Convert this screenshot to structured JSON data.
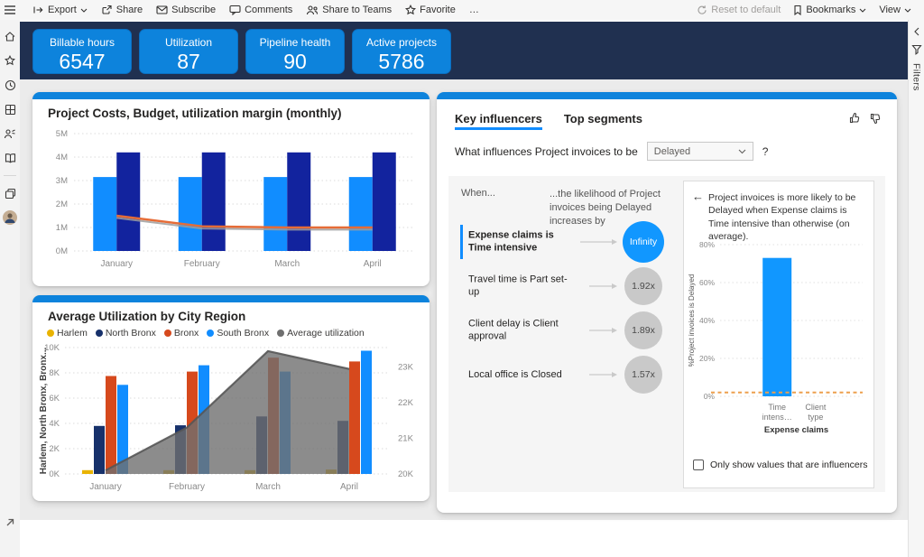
{
  "toolbar": {
    "export": "Export",
    "share": "Share",
    "subscribe": "Subscribe",
    "comments": "Comments",
    "share_to_teams": "Share to Teams",
    "favorite": "Favorite",
    "more": "…",
    "reset": "Reset to default",
    "bookmarks": "Bookmarks",
    "view": "View"
  },
  "filters_panel": {
    "label": "Filters"
  },
  "kpis": [
    {
      "label": "Billable hours",
      "value": "6547"
    },
    {
      "label": "Utilization",
      "value": "87"
    },
    {
      "label": "Pipeline health",
      "value": "90"
    },
    {
      "label": "Active projects",
      "value": "5786"
    }
  ],
  "key_influencers": {
    "tabs": [
      {
        "label": "Key influencers"
      },
      {
        "label": "Top segments"
      }
    ],
    "question_prefix": "What influences Project invoices to be",
    "dropdown_value": "Delayed",
    "question_mark": "?",
    "when_label": "When...",
    "likelihood_header": "...the likelihood of Project invoices being Delayed increases by",
    "influencers": [
      {
        "factor": "Expense claims is Time intensive",
        "multiplier": "Infinity"
      },
      {
        "factor": "Travel time is Part set-up",
        "multiplier": "1.92x"
      },
      {
        "factor": "Client delay is Client approval",
        "multiplier": "1.89x"
      },
      {
        "factor": "Local office is Closed",
        "multiplier": "1.57x"
      }
    ],
    "detail": {
      "back_arrow": "←",
      "text": "Project invoices is more likely to be Delayed when Expense claims is Time intensive than otherwise (on average).",
      "checkbox_label": "Only show values that are influencers",
      "checkbox_checked": false
    }
  },
  "colors": {
    "accent_blue": "#118DFF",
    "dark_blue": "#12239E",
    "orange": "#E66C37",
    "banner_navy": "#203050",
    "kpi_card_blue": "#0D83DC",
    "influencer_blue": "#1197FF"
  },
  "chart_data": [
    {
      "type": "bar",
      "title": "Project Costs, Budget, utilization margin (monthly)",
      "categories": [
        "January",
        "February",
        "March",
        "April"
      ],
      "series": [
        {
          "name": "Project Costs",
          "color": "#118DFF",
          "values": [
            3.15,
            3.15,
            3.15,
            3.15
          ]
        },
        {
          "name": "Budget",
          "color": "#12239E",
          "values": [
            4.2,
            4.2,
            4.2,
            4.2
          ]
        }
      ],
      "line_series": {
        "name": "utilization margin",
        "color": "#E66C37",
        "values": [
          1.5,
          1.05,
          1.0,
          1.0
        ]
      },
      "unit": "M",
      "ylim": [
        0,
        5
      ],
      "yticks": [
        "0M",
        "1M",
        "2M",
        "3M",
        "4M",
        "5M"
      ],
      "grid": true,
      "legend": "none"
    },
    {
      "type": "bar",
      "title": "Average Utilization by City Region",
      "categories": [
        "January",
        "February",
        "March",
        "April"
      ],
      "series": [
        {
          "name": "Harlem",
          "color": "#E9B300",
          "values": [
            0.3,
            0.3,
            0.3,
            0.35
          ]
        },
        {
          "name": "North Bronx",
          "color": "#17316B",
          "values": [
            3.8,
            3.85,
            4.55,
            4.2
          ]
        },
        {
          "name": "Bronx",
          "color": "#D6491D",
          "values": [
            7.75,
            8.1,
            9.2,
            8.9
          ]
        },
        {
          "name": "South Bronx",
          "color": "#118DFF",
          "values": [
            7.05,
            8.6,
            8.1,
            9.75
          ]
        }
      ],
      "area_series": {
        "name": "Average utilization",
        "color": "#6F6F6F",
        "axis": "right",
        "values": [
          20.1,
          21.3,
          23.45,
          22.95
        ]
      },
      "ylabel_left": "Harlem, North Bronx, Bronx...",
      "ylim_left": [
        0,
        10
      ],
      "yticks_left": [
        "0K",
        "2K",
        "4K",
        "6K",
        "8K",
        "10K"
      ],
      "ylim_right": [
        20,
        23.55
      ],
      "yticks_right": [
        "20K",
        "21K",
        "22K",
        "23K"
      ],
      "grid": true,
      "legend": "top"
    },
    {
      "type": "bar",
      "title": "",
      "categories": [
        "Time intens…",
        "Client type"
      ],
      "values": [
        73,
        0
      ],
      "bar_color": "#1197FF",
      "ylabel": "%Project invoices is Delayed",
      "xlabel": "Expense claims",
      "ylim": [
        0,
        80
      ],
      "yticks": [
        "0%",
        "20%",
        "40%",
        "60%",
        "80%"
      ],
      "reference_line": {
        "value": 2,
        "color": "#EDA04F",
        "style": "dashed"
      },
      "grid": true,
      "legend": "none"
    }
  ]
}
